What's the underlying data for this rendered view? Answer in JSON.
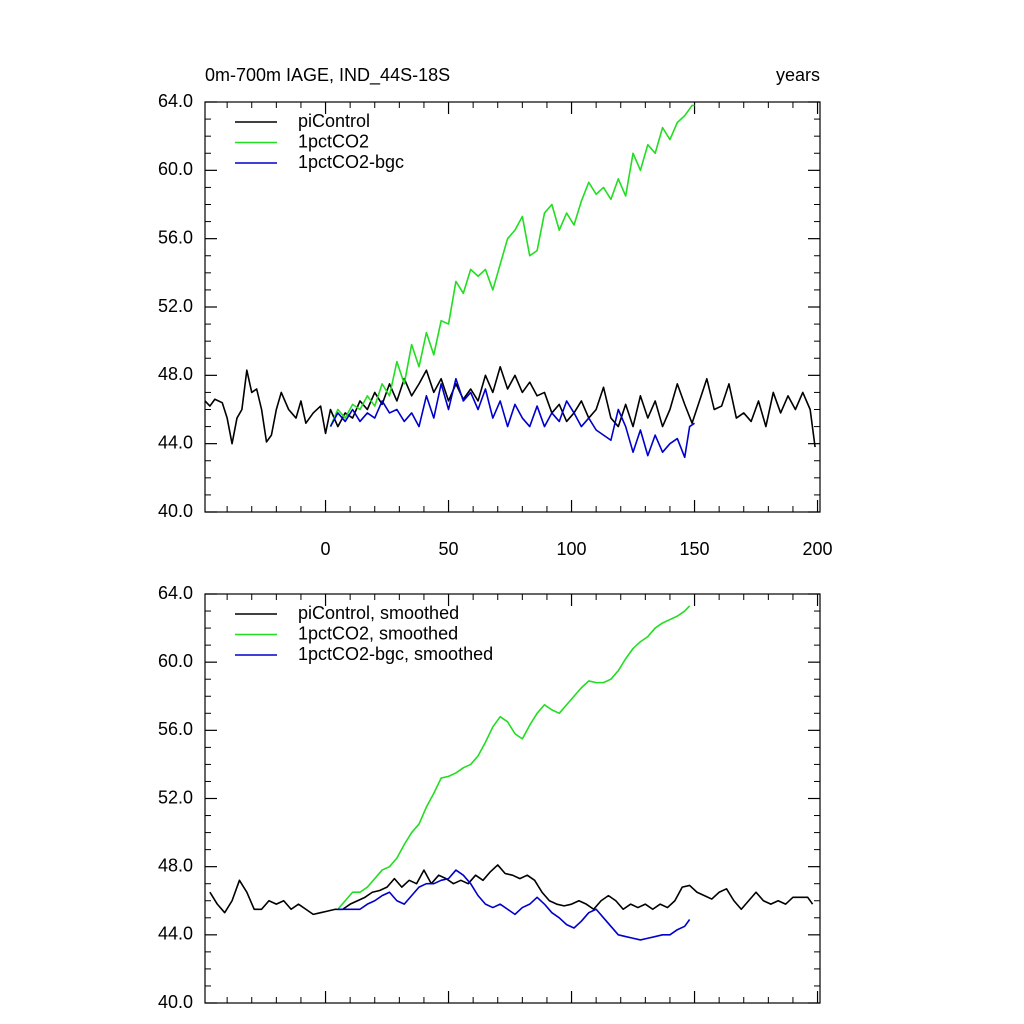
{
  "chart_data": [
    {
      "type": "line",
      "title": "0m-700m IAGE, IND_44S-18S",
      "units": "years",
      "xlim": [
        -49,
        201
      ],
      "xticks": [
        0,
        50,
        100,
        150,
        200
      ],
      "ylim": [
        40,
        64
      ],
      "yticks": [
        {
          "value": 40,
          "label": "40.0"
        },
        {
          "value": 44,
          "label": "44.0"
        },
        {
          "value": 48,
          "label": "48.0"
        },
        {
          "value": 52,
          "label": "52.0"
        },
        {
          "value": 56,
          "label": "56.0"
        },
        {
          "value": 60,
          "label": "60.0"
        },
        {
          "value": 64,
          "label": "64.0"
        }
      ],
      "grid": false,
      "legend": "upper left",
      "series": [
        {
          "name": "piControl",
          "color": "#000000",
          "x": [
            -49,
            -47,
            -45,
            -42,
            -40,
            -38,
            -36,
            -34,
            -32,
            -30,
            -28,
            -26,
            -24,
            -22,
            -20,
            -18,
            -15,
            -12,
            -10,
            -8,
            -5,
            -2,
            0,
            2,
            5,
            8,
            11,
            14,
            17,
            20,
            23,
            26,
            29,
            32,
            35,
            38,
            41,
            44,
            47,
            50,
            53,
            56,
            59,
            62,
            65,
            68,
            71,
            74,
            77,
            80,
            83,
            86,
            89,
            92,
            95,
            98,
            101,
            104,
            107,
            110,
            113,
            116,
            119,
            122,
            125,
            128,
            131,
            134,
            137,
            140,
            143,
            146,
            149,
            152,
            155,
            158,
            161,
            164,
            167,
            170,
            173,
            176,
            179,
            182,
            185,
            188,
            191,
            194,
            197,
            199
          ],
          "values": [
            46.5,
            46.2,
            46.6,
            46.4,
            45.5,
            44.0,
            45.5,
            46.0,
            48.3,
            47.0,
            47.2,
            46.0,
            44.1,
            44.5,
            46.0,
            47.0,
            46.0,
            45.5,
            46.5,
            45.2,
            45.8,
            46.2,
            44.6,
            46.0,
            45.0,
            45.8,
            45.5,
            46.5,
            46.0,
            47.0,
            46.3,
            47.5,
            46.5,
            47.8,
            46.8,
            47.5,
            48.3,
            47.0,
            47.8,
            46.5,
            47.5,
            46.6,
            47.2,
            46.5,
            48.0,
            47.0,
            48.5,
            47.2,
            48.0,
            47.0,
            47.6,
            46.8,
            47.0,
            45.8,
            46.3,
            45.3,
            45.8,
            46.5,
            45.5,
            46.0,
            47.3,
            45.5,
            45.0,
            46.3,
            45.0,
            46.8,
            45.5,
            46.5,
            45.0,
            46.0,
            47.5,
            46.3,
            45.2,
            46.5,
            47.8,
            46.0,
            46.2,
            47.5,
            45.5,
            45.8,
            45.3,
            46.5,
            45.0,
            47.0,
            45.8,
            46.8,
            46.0,
            47.0,
            46.0,
            43.8
          ]
        },
        {
          "name": "1pctCO2",
          "color": "#22dd22",
          "x": [
            2,
            5,
            8,
            11,
            14,
            17,
            20,
            23,
            26,
            29,
            32,
            35,
            38,
            41,
            44,
            47,
            50,
            53,
            56,
            59,
            62,
            65,
            68,
            71,
            74,
            77,
            80,
            83,
            86,
            89,
            92,
            95,
            98,
            101,
            104,
            107,
            110,
            113,
            116,
            119,
            122,
            125,
            128,
            131,
            134,
            137,
            140,
            143,
            146,
            149,
            150
          ],
          "values": [
            45.0,
            46.0,
            45.5,
            46.3,
            46.0,
            46.8,
            46.2,
            47.5,
            46.8,
            48.8,
            47.5,
            49.8,
            48.5,
            50.5,
            49.2,
            51.2,
            51.0,
            53.5,
            52.8,
            54.2,
            53.8,
            54.2,
            53.0,
            54.5,
            56.0,
            56.5,
            57.3,
            55.0,
            55.3,
            57.5,
            58.0,
            56.5,
            57.5,
            56.8,
            58.2,
            59.3,
            58.6,
            59.0,
            58.3,
            59.5,
            58.5,
            61.0,
            60.0,
            61.5,
            61.0,
            62.5,
            61.8,
            62.8,
            63.2,
            63.8,
            63.8
          ]
        },
        {
          "name": "1pctCO2-bgc",
          "color": "#0000cc",
          "x": [
            2,
            5,
            8,
            11,
            14,
            17,
            20,
            23,
            26,
            29,
            32,
            35,
            38,
            41,
            44,
            47,
            50,
            53,
            56,
            59,
            62,
            65,
            68,
            71,
            74,
            77,
            80,
            83,
            86,
            89,
            92,
            95,
            98,
            101,
            104,
            107,
            110,
            113,
            116,
            119,
            122,
            125,
            128,
            131,
            134,
            137,
            140,
            143,
            146,
            148,
            150
          ],
          "values": [
            45.0,
            45.8,
            45.3,
            46.0,
            45.3,
            45.8,
            45.5,
            46.5,
            45.8,
            46.0,
            45.3,
            45.8,
            45.0,
            46.8,
            45.5,
            47.5,
            46.0,
            47.8,
            46.5,
            47.0,
            46.0,
            47.2,
            45.5,
            46.5,
            45.0,
            46.3,
            45.5,
            45.0,
            46.2,
            45.0,
            45.8,
            45.3,
            46.5,
            45.8,
            45.0,
            45.5,
            44.8,
            44.5,
            44.2,
            46.0,
            45.0,
            43.5,
            44.8,
            43.3,
            44.5,
            43.5,
            44.0,
            44.3,
            43.2,
            45.0,
            45.2
          ]
        }
      ]
    },
    {
      "type": "line",
      "xlim": [
        -49,
        201
      ],
      "ylim": [
        40,
        64
      ],
      "yticks": [
        {
          "value": 40,
          "label": "40.0"
        },
        {
          "value": 44,
          "label": "44.0"
        },
        {
          "value": 48,
          "label": "48.0"
        },
        {
          "value": 52,
          "label": "52.0"
        },
        {
          "value": 56,
          "label": "56.0"
        },
        {
          "value": 60,
          "label": "60.0"
        },
        {
          "value": 64,
          "label": "64.0"
        }
      ],
      "grid": false,
      "legend": "upper left",
      "series": [
        {
          "name": "piControl, smoothed",
          "color": "#000000",
          "x": [
            -47,
            -44,
            -41,
            -38,
            -35,
            -32,
            -29,
            -26,
            -23,
            -20,
            -17,
            -14,
            -11,
            -8,
            -5,
            -2,
            1,
            4,
            7,
            10,
            13,
            16,
            19,
            22,
            25,
            28,
            31,
            34,
            37,
            40,
            43,
            46,
            49,
            52,
            55,
            58,
            61,
            64,
            67,
            70,
            73,
            76,
            79,
            82,
            85,
            88,
            91,
            94,
            97,
            100,
            103,
            106,
            109,
            112,
            115,
            118,
            121,
            124,
            127,
            130,
            133,
            136,
            139,
            142,
            145,
            148,
            151,
            154,
            157,
            160,
            163,
            166,
            169,
            172,
            175,
            178,
            181,
            184,
            187,
            190,
            193,
            196,
            198
          ],
          "values": [
            46.5,
            45.8,
            45.3,
            46.0,
            47.2,
            46.5,
            45.5,
            45.5,
            46.0,
            45.8,
            46.0,
            45.5,
            45.8,
            45.5,
            45.2,
            45.3,
            45.4,
            45.5,
            45.5,
            45.8,
            46.0,
            46.2,
            46.5,
            46.6,
            46.8,
            47.3,
            46.8,
            47.2,
            47.0,
            47.8,
            47.0,
            47.5,
            47.3,
            47.0,
            47.2,
            47.0,
            47.5,
            47.2,
            47.7,
            48.1,
            47.6,
            47.5,
            47.3,
            47.5,
            47.2,
            46.5,
            46.0,
            45.8,
            45.7,
            45.8,
            46.0,
            45.8,
            45.5,
            46.0,
            46.3,
            46.0,
            45.5,
            45.8,
            45.6,
            45.8,
            45.5,
            45.8,
            45.6,
            46.0,
            46.8,
            46.9,
            46.5,
            46.3,
            46.1,
            46.5,
            46.7,
            46.0,
            45.5,
            46.0,
            46.5,
            46.0,
            45.8,
            46.0,
            45.8,
            46.2,
            46.2,
            46.2,
            45.8
          ]
        },
        {
          "name": "1pctCO2, smoothed",
          "color": "#22dd22",
          "x": [
            5,
            8,
            11,
            14,
            17,
            20,
            23,
            26,
            29,
            32,
            35,
            38,
            41,
            44,
            47,
            50,
            53,
            56,
            59,
            62,
            65,
            68,
            71,
            74,
            77,
            80,
            83,
            86,
            89,
            92,
            95,
            98,
            101,
            104,
            107,
            110,
            113,
            116,
            119,
            122,
            125,
            128,
            131,
            134,
            137,
            140,
            143,
            146,
            148
          ],
          "values": [
            45.5,
            46.0,
            46.5,
            46.5,
            46.8,
            47.3,
            47.8,
            48.0,
            48.5,
            49.3,
            50.0,
            50.5,
            51.5,
            52.3,
            53.2,
            53.3,
            53.5,
            53.8,
            54.0,
            54.5,
            55.3,
            56.2,
            56.8,
            56.5,
            55.8,
            55.5,
            56.3,
            57.0,
            57.5,
            57.2,
            57.0,
            57.5,
            58.0,
            58.5,
            58.9,
            58.8,
            58.8,
            59.0,
            59.5,
            60.2,
            60.8,
            61.2,
            61.5,
            62.0,
            62.3,
            62.5,
            62.7,
            63.0,
            63.3
          ]
        },
        {
          "name": "1pctCO2-bgc, smoothed",
          "color": "#0000cc",
          "x": [
            5,
            8,
            11,
            14,
            17,
            20,
            23,
            26,
            29,
            32,
            35,
            38,
            41,
            44,
            47,
            50,
            53,
            56,
            59,
            62,
            65,
            68,
            71,
            74,
            77,
            80,
            83,
            86,
            89,
            92,
            95,
            98,
            101,
            104,
            107,
            110,
            113,
            116,
            119,
            122,
            125,
            128,
            131,
            134,
            137,
            140,
            143,
            146,
            148
          ],
          "values": [
            45.5,
            45.5,
            45.5,
            45.5,
            45.8,
            46.0,
            46.3,
            46.5,
            46.0,
            45.8,
            46.3,
            46.8,
            47.0,
            47.0,
            47.2,
            47.3,
            47.8,
            47.5,
            47.0,
            46.3,
            45.8,
            45.6,
            45.8,
            45.5,
            45.2,
            45.6,
            45.8,
            46.2,
            45.8,
            45.3,
            45.0,
            44.6,
            44.4,
            44.8,
            45.3,
            45.5,
            45.0,
            44.5,
            44.0,
            43.9,
            43.8,
            43.7,
            43.8,
            43.9,
            44.0,
            44.0,
            44.3,
            44.5,
            44.9
          ]
        }
      ]
    }
  ]
}
